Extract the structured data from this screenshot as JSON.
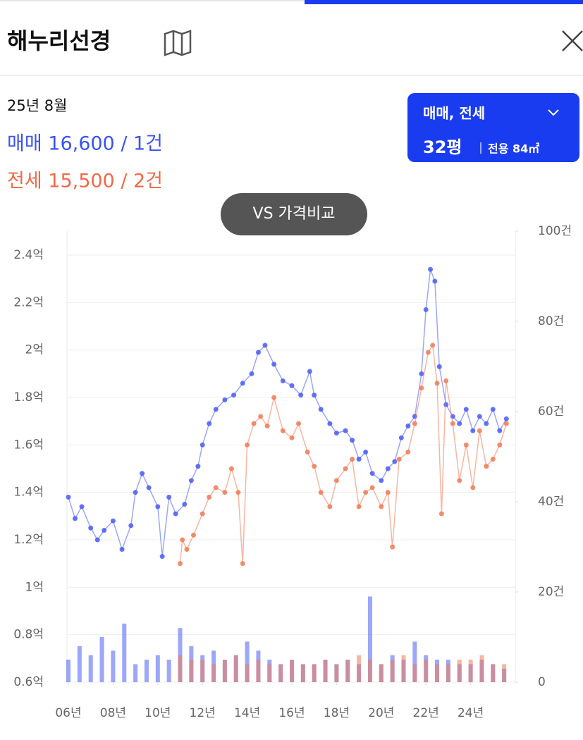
{
  "header": {
    "title": "해누리선경"
  },
  "info": {
    "date": "25년 8월",
    "sale": "매매 16,600 / 1건",
    "rent": "전세 15,500 / 2건"
  },
  "selector": {
    "types": "매매, 전세",
    "size": "32평",
    "area": "전용 84㎡"
  },
  "compare_button": "VS 가격비교",
  "chart_data": {
    "type": "line",
    "xlim": [
      2006,
      2026
    ],
    "xticks": [
      {
        "value": 2006,
        "label": "06년"
      },
      {
        "value": 2008,
        "label": "08년"
      },
      {
        "value": 2010,
        "label": "10년"
      },
      {
        "value": 2012,
        "label": "12년"
      },
      {
        "value": 2014,
        "label": "14년"
      },
      {
        "value": 2016,
        "label": "16년"
      },
      {
        "value": 2018,
        "label": "18년"
      },
      {
        "value": 2020,
        "label": "20년"
      },
      {
        "value": 2022,
        "label": "22년"
      },
      {
        "value": 2024,
        "label": "24년"
      }
    ],
    "ylim": [
      0.6,
      2.4
    ],
    "yticks": [
      {
        "value": 0.6,
        "label": "0.6억"
      },
      {
        "value": 0.8,
        "label": "0.8억"
      },
      {
        "value": 1,
        "label": "1억"
      },
      {
        "value": 1.2,
        "label": "1.2억"
      },
      {
        "value": 1.4,
        "label": "1.4억"
      },
      {
        "value": 1.6,
        "label": "1.6억"
      },
      {
        "value": 1.8,
        "label": "1.8억"
      },
      {
        "value": 2,
        "label": "2억"
      },
      {
        "value": 2.2,
        "label": "2.2억"
      },
      {
        "value": 2.4,
        "label": "2.4억"
      }
    ],
    "y2lim": [
      0,
      100
    ],
    "y2ticks": [
      0,
      {
        "value": 20,
        "label": "20건"
      },
      {
        "value": 40,
        "label": "40건"
      },
      {
        "value": 60,
        "label": "60건"
      },
      {
        "value": 80,
        "label": "80건"
      },
      {
        "value": 100,
        "label": "100건"
      }
    ],
    "grid": true,
    "series": [
      {
        "name": "매매",
        "color": "#4a5cf5",
        "x": [
          2006.0,
          2006.3,
          2006.6,
          2007.0,
          2007.3,
          2007.6,
          2008.0,
          2008.4,
          2008.8,
          2009.0,
          2009.3,
          2009.6,
          2010.0,
          2010.2,
          2010.5,
          2010.8,
          2011.2,
          2011.5,
          2011.8,
          2012.0,
          2012.3,
          2012.6,
          2013.0,
          2013.4,
          2013.8,
          2014.2,
          2014.5,
          2014.8,
          2015.2,
          2015.6,
          2016.0,
          2016.4,
          2016.8,
          2017.0,
          2017.3,
          2017.7,
          2018.0,
          2018.4,
          2018.7,
          2019.0,
          2019.3,
          2019.6,
          2020.0,
          2020.3,
          2020.6,
          2020.9,
          2021.2,
          2021.5,
          2021.8,
          2022.0,
          2022.2,
          2022.4,
          2022.6,
          2022.9,
          2023.2,
          2023.5,
          2023.8,
          2024.1,
          2024.4,
          2024.7,
          2025.0,
          2025.3,
          2025.6
        ],
        "values": [
          1.38,
          1.29,
          1.34,
          1.25,
          1.2,
          1.24,
          1.28,
          1.16,
          1.26,
          1.4,
          1.48,
          1.42,
          1.34,
          1.13,
          1.38,
          1.31,
          1.35,
          1.45,
          1.51,
          1.6,
          1.69,
          1.75,
          1.79,
          1.81,
          1.86,
          1.9,
          1.99,
          2.02,
          1.94,
          1.87,
          1.85,
          1.81,
          1.91,
          1.81,
          1.75,
          1.69,
          1.65,
          1.66,
          1.62,
          1.54,
          1.57,
          1.48,
          1.45,
          1.5,
          1.53,
          1.63,
          1.68,
          1.72,
          1.9,
          2.17,
          2.34,
          2.29,
          1.93,
          1.77,
          1.72,
          1.69,
          1.75,
          1.66,
          1.72,
          1.69,
          1.75,
          1.66,
          1.71
        ]
      },
      {
        "name": "전세",
        "color": "#f07a55",
        "x": [
          2011.0,
          2011.1,
          2011.3,
          2011.6,
          2012.0,
          2012.3,
          2012.6,
          2013.0,
          2013.3,
          2013.6,
          2013.8,
          2014.0,
          2014.3,
          2014.6,
          2014.9,
          2015.2,
          2015.6,
          2016.0,
          2016.3,
          2016.7,
          2017.0,
          2017.3,
          2017.7,
          2018.0,
          2018.4,
          2018.7,
          2019.0,
          2019.3,
          2019.6,
          2020.0,
          2020.3,
          2020.5,
          2020.8,
          2021.2,
          2021.5,
          2021.8,
          2022.1,
          2022.3,
          2022.5,
          2022.7,
          2022.9,
          2023.2,
          2023.5,
          2023.8,
          2024.1,
          2024.4,
          2024.7,
          2025.0,
          2025.3,
          2025.6
        ],
        "values": [
          1.1,
          1.2,
          1.16,
          1.22,
          1.31,
          1.38,
          1.42,
          1.4,
          1.5,
          1.4,
          1.1,
          1.6,
          1.69,
          1.72,
          1.68,
          1.8,
          1.66,
          1.63,
          1.69,
          1.57,
          1.51,
          1.4,
          1.34,
          1.45,
          1.5,
          1.54,
          1.34,
          1.4,
          1.42,
          1.34,
          1.4,
          1.17,
          1.54,
          1.57,
          1.69,
          1.84,
          1.99,
          2.02,
          1.86,
          1.31,
          1.87,
          1.69,
          1.45,
          1.6,
          1.42,
          1.66,
          1.51,
          1.54,
          1.6,
          1.69
        ]
      },
      {
        "type": "bar",
        "axis": "y2",
        "color": "#4a5cf5",
        "x": [
          2006,
          2006.5,
          2007,
          2007.5,
          2008,
          2008.5,
          2009,
          2009.5,
          2010,
          2010.5,
          2011,
          2011.5,
          2012,
          2012.5,
          2013,
          2013.5,
          2014,
          2014.5,
          2015,
          2015.5,
          2016,
          2016.5,
          2017,
          2017.5,
          2018,
          2018.5,
          2019,
          2019.5,
          2020,
          2020.5,
          2021,
          2021.5,
          2022,
          2022.5,
          2023,
          2023.5,
          2024,
          2024.5,
          2025,
          2025.5
        ],
        "values": [
          5,
          8,
          6,
          10,
          7,
          13,
          4,
          5,
          6,
          5,
          12,
          8,
          6,
          7,
          5,
          6,
          9,
          7,
          5,
          4,
          5,
          4,
          4,
          5,
          4,
          5,
          4,
          19,
          4,
          6,
          5,
          9,
          6,
          5,
          5,
          4,
          4,
          5,
          4,
          3
        ]
      },
      {
        "type": "bar",
        "axis": "y2",
        "color": "#f07a55",
        "x": [
          2011,
          2011.5,
          2012,
          2012.5,
          2013,
          2013.5,
          2014,
          2014.5,
          2015,
          2015.5,
          2016,
          2016.5,
          2017,
          2017.5,
          2018,
          2018.5,
          2019,
          2019.5,
          2020,
          2020.5,
          2021,
          2021.5,
          2022,
          2022.5,
          2023,
          2023.5,
          2024,
          2024.5,
          2025,
          2025.5
        ],
        "values": [
          6,
          5,
          5,
          4,
          5,
          6,
          4,
          5,
          4,
          4,
          5,
          4,
          4,
          5,
          4,
          5,
          6,
          5,
          4,
          5,
          6,
          4,
          5,
          4,
          4,
          5,
          5,
          6,
          4,
          4
        ]
      }
    ]
  }
}
